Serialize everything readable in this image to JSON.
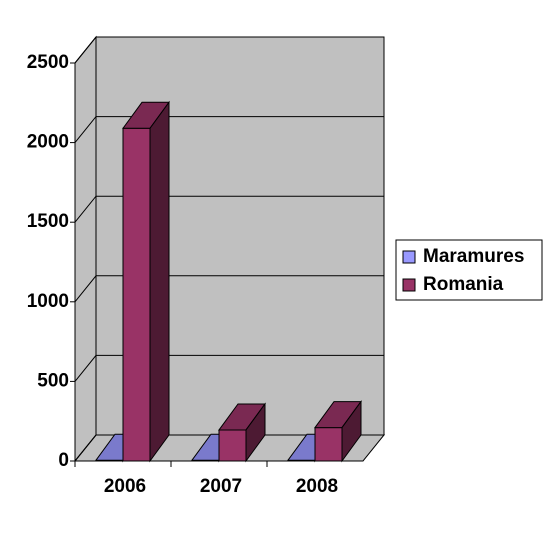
{
  "chart_data": {
    "type": "bar3d",
    "categories": [
      "2006",
      "2007",
      "2008"
    ],
    "series": [
      {
        "name": "Maramures",
        "color": "#9999ff",
        "values": [
          5,
          5,
          5
        ]
      },
      {
        "name": "Romania",
        "color": "#993366",
        "values": [
          2090,
          195,
          210
        ]
      }
    ],
    "ylim": [
      0,
      2500
    ],
    "yticks": [
      0,
      500,
      1000,
      1500,
      2000,
      2500
    ],
    "grid": true,
    "legend": "right"
  }
}
